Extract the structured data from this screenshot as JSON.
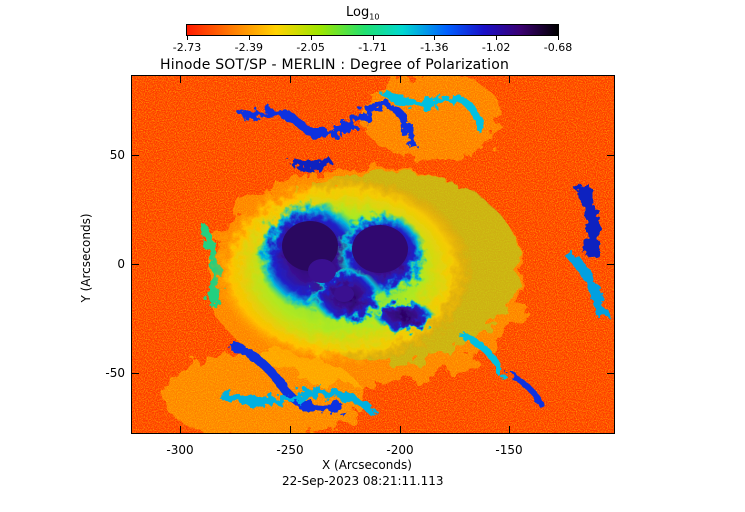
{
  "colorbar": {
    "title": "Log",
    "title_sub": "10",
    "ticks": [
      "-2.73",
      "-2.39",
      "-2.05",
      "-1.71",
      "-1.36",
      "-1.02",
      "-0.68"
    ]
  },
  "title": "Hinode SOT/SP - MERLIN : Degree of Polarization",
  "axes": {
    "xlabel": "X (Arcseconds)",
    "ylabel": "Y (Arcseconds)",
    "xticks": [
      "-300",
      "-250",
      "-200",
      "-150"
    ],
    "yticks": [
      "50",
      "0",
      "-50"
    ]
  },
  "timestamp": "22-Sep-2023 08:21:11.113",
  "colors": {
    "low": "#ff2a00",
    "mid_low": "#ffd200",
    "mid": "#20e070",
    "mid_high": "#0060ff",
    "high": "#3a0070"
  }
}
